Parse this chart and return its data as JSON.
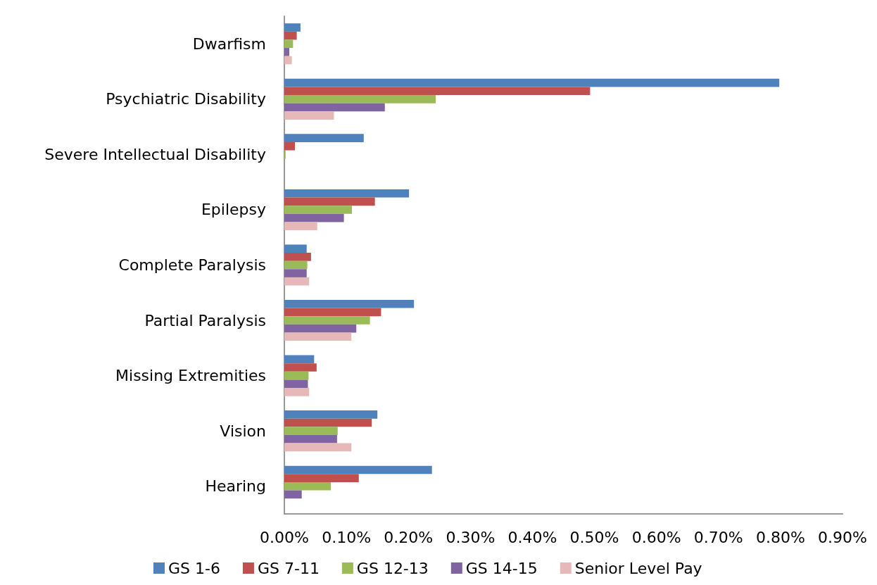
{
  "chart_data": {
    "type": "bar",
    "orientation": "horizontal",
    "categories": [
      "Dwarfism",
      "Psychiatric Disability",
      "Severe Intellectual Disability",
      "Epilepsy",
      "Complete Paralysis",
      "Partial Paralysis",
      "Missing Extremities",
      "Vision",
      "Hearing"
    ],
    "series": [
      {
        "name": "GS 1-6",
        "color": "#4f81bd",
        "values": [
          0.026,
          0.798,
          0.128,
          0.201,
          0.036,
          0.209,
          0.048,
          0.15,
          0.238
        ]
      },
      {
        "name": "GS 7-11",
        "color": "#c0504d",
        "values": [
          0.02,
          0.493,
          0.017,
          0.146,
          0.043,
          0.156,
          0.052,
          0.141,
          0.12
        ]
      },
      {
        "name": "GS 12-13",
        "color": "#9bbb59",
        "values": [
          0.014,
          0.244,
          0.002,
          0.109,
          0.037,
          0.138,
          0.039,
          0.086,
          0.075
        ]
      },
      {
        "name": "GS 14-15",
        "color": "#8064a2",
        "values": [
          0.008,
          0.162,
          null,
          0.096,
          0.036,
          0.116,
          0.038,
          0.085,
          0.028
        ]
      },
      {
        "name": "Senior Level Pay",
        "color": "#e6b9b8",
        "values": [
          0.012,
          0.08,
          null,
          0.053,
          0.04,
          0.108,
          0.04,
          0.108,
          null
        ]
      }
    ],
    "xlim": [
      0,
      0.9
    ],
    "xticks": [
      {
        "value": 0,
        "label": "0.00%"
      },
      {
        "value": 0.1,
        "label": "0.10%"
      },
      {
        "value": 0.2,
        "label": "0.20%"
      },
      {
        "value": 0.3,
        "label": "0.30%"
      },
      {
        "value": 0.4,
        "label": "0.40%"
      },
      {
        "value": 0.5,
        "label": "0.50%"
      },
      {
        "value": 0.6,
        "label": "0.60%"
      },
      {
        "value": 0.7,
        "label": "0.70%"
      },
      {
        "value": 0.8,
        "label": "0.80%"
      },
      {
        "value": 0.9,
        "label": "0.90%"
      }
    ],
    "grid": false,
    "legend": "bottom"
  }
}
